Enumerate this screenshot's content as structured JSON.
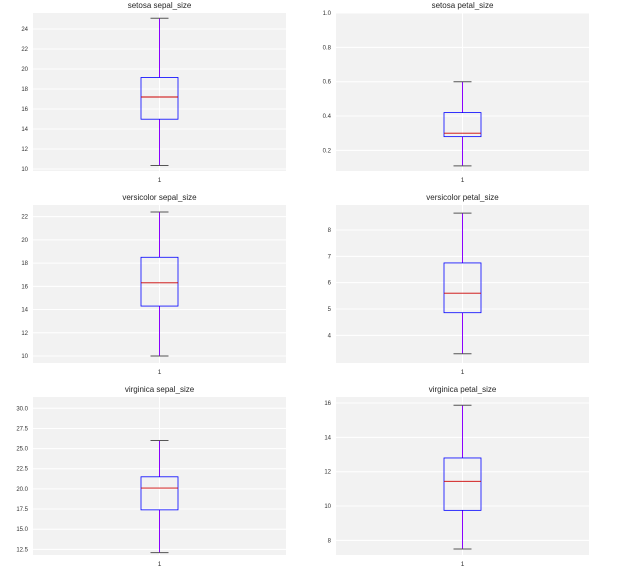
{
  "colors": {
    "panel_bg": "#f2f2f2",
    "grid": "#ffffff",
    "box": "#0000ff",
    "whisker": "#8b00ff",
    "median": "#cc0000",
    "caps": "#555555"
  },
  "chart_data": [
    {
      "type": "box",
      "title": "setosa sepal_size",
      "xtick": "1",
      "ylim": [
        9.8,
        25.6
      ],
      "yticks": [
        10,
        12,
        14,
        16,
        18,
        20,
        22,
        24
      ],
      "ytick_labels": [
        "10",
        "12",
        "14",
        "16",
        "18",
        "20",
        "22",
        "24"
      ],
      "stats": {
        "min": 10.35,
        "q1": 14.98,
        "median": 17.2,
        "q3": 19.15,
        "max": 25.08
      }
    },
    {
      "type": "box",
      "title": "setosa petal_size",
      "xtick": "1",
      "ylim": [
        0.08,
        1.0
      ],
      "yticks": [
        0.2,
        0.4,
        0.6,
        0.8,
        1.0
      ],
      "ytick_labels": [
        "0.2",
        "0.4",
        "0.6",
        "0.8",
        "1.0"
      ],
      "stats": {
        "min": 0.11,
        "q1": 0.28,
        "median": 0.3,
        "q3": 0.42,
        "max": 0.6
      }
    },
    {
      "type": "box",
      "title": "versicolor sepal_size",
      "xtick": "1",
      "ylim": [
        9.4,
        23.0
      ],
      "yticks": [
        10,
        12,
        14,
        16,
        18,
        20,
        22
      ],
      "ytick_labels": [
        "10",
        "12",
        "14",
        "16",
        "18",
        "20",
        "22"
      ],
      "stats": {
        "min": 10.0,
        "q1": 14.3,
        "median": 16.3,
        "q3": 18.5,
        "max": 22.4
      }
    },
    {
      "type": "box",
      "title": "versicolor petal_size",
      "xtick": "1",
      "ylim": [
        2.95,
        8.95
      ],
      "yticks": [
        4,
        5,
        6,
        7,
        8
      ],
      "ytick_labels": [
        "4",
        "5",
        "6",
        "7",
        "8"
      ],
      "stats": {
        "min": 3.3,
        "q1": 4.86,
        "median": 5.6,
        "q3": 6.75,
        "max": 8.64
      }
    },
    {
      "type": "box",
      "title": "virginica sepal_size",
      "xtick": "1",
      "ylim": [
        11.8,
        31.4
      ],
      "yticks": [
        12.5,
        15.0,
        17.5,
        20.0,
        22.5,
        25.0,
        27.5,
        30.0
      ],
      "ytick_labels": [
        "12.5",
        "15.0",
        "17.5",
        "20.0",
        "22.5",
        "25.0",
        "27.5",
        "30.0"
      ],
      "stats": {
        "min": 12.1,
        "q1": 17.4,
        "median": 20.1,
        "q3": 21.5,
        "max": 26.0
      }
    },
    {
      "type": "box",
      "title": "virginica petal_size",
      "xtick": "1",
      "ylim": [
        7.15,
        16.35
      ],
      "yticks": [
        8,
        10,
        12,
        14,
        16
      ],
      "ytick_labels": [
        "8",
        "10",
        "12",
        "14",
        "16"
      ],
      "stats": {
        "min": 7.5,
        "q1": 9.75,
        "median": 11.44,
        "q3": 12.8,
        "max": 15.87
      }
    }
  ]
}
